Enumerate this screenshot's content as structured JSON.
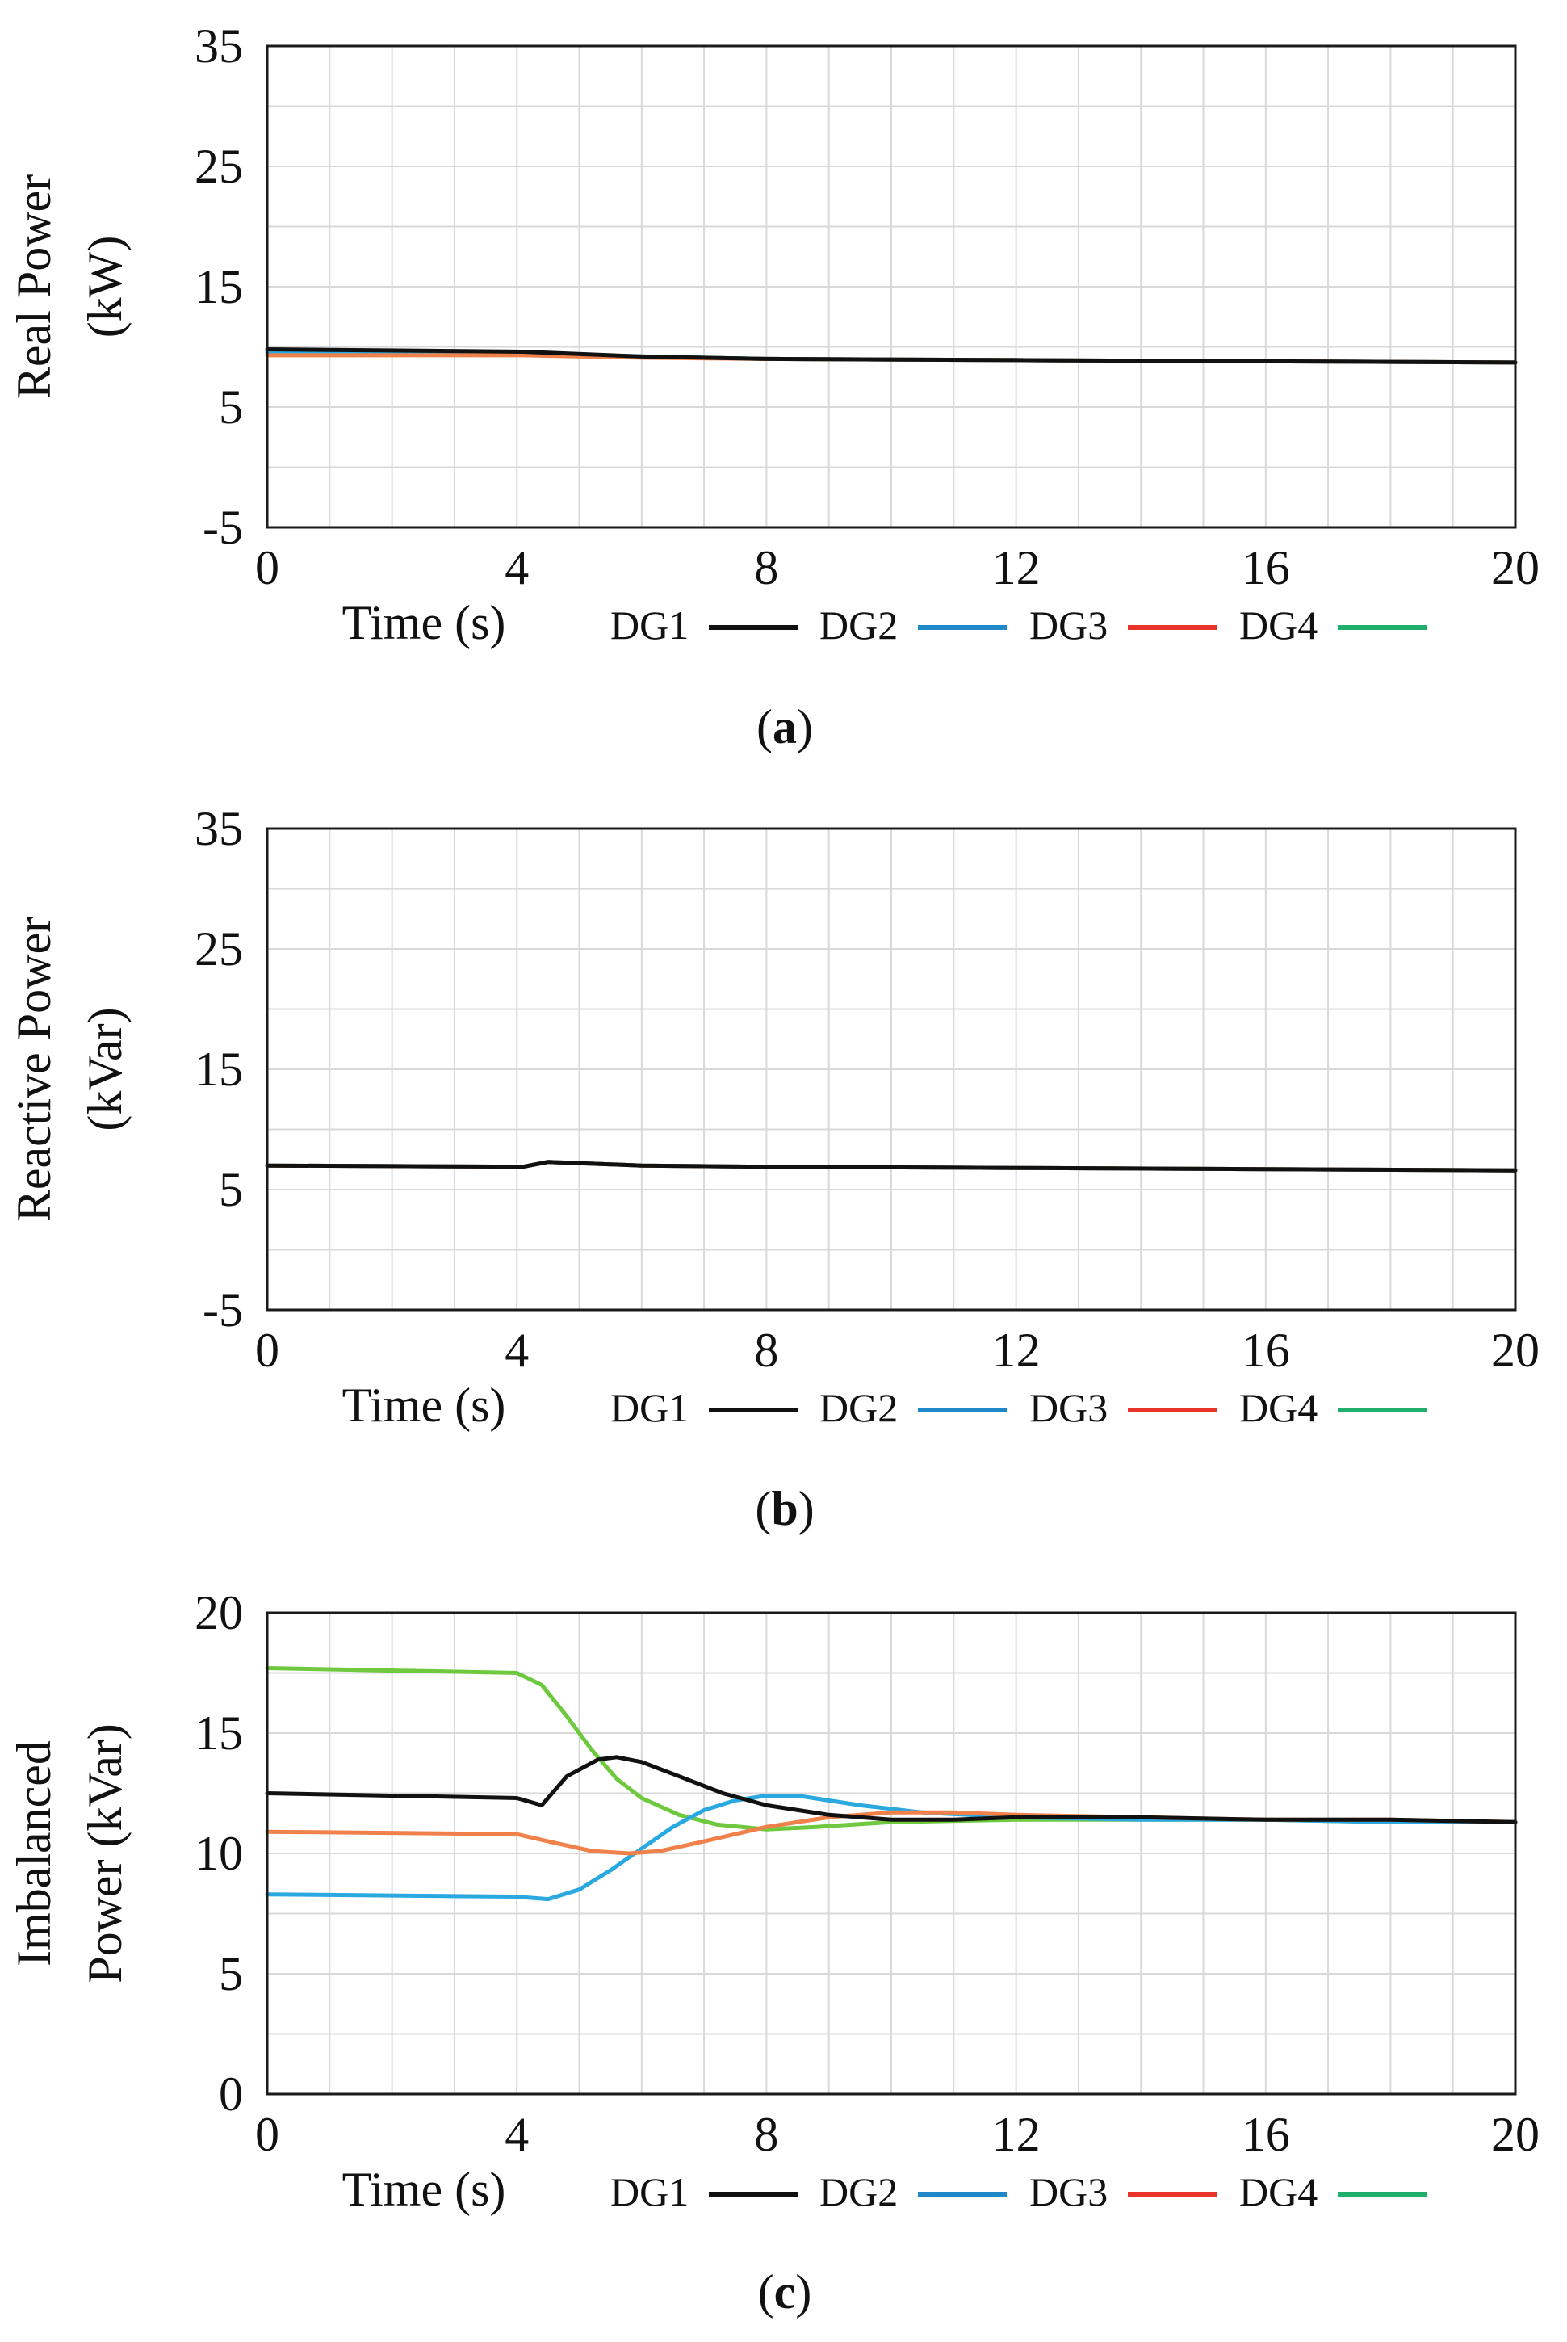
{
  "colors": {
    "DG1": "#111111",
    "DG2": "#2aa8e0",
    "DG3": "#f0814a",
    "DG4": "#6ec93f",
    "legend_DG2": "#1e88c8",
    "legend_DG3": "#e8332a",
    "legend_DG4": "#1fae6c"
  },
  "chart_data": [
    {
      "type": "line",
      "panel_label": "a",
      "xlabel": "Time (s)",
      "ylabel": [
        "Real Power",
        "(kW)"
      ],
      "xlim": [
        0,
        20
      ],
      "ylim": [
        -5,
        35
      ],
      "x_ticks": [
        0,
        4,
        8,
        12,
        16,
        20
      ],
      "y_ticks": [
        -5,
        5,
        15,
        25,
        35
      ],
      "legend": [
        "DG1",
        "DG2",
        "DG3",
        "DG4"
      ],
      "series": [
        {
          "name": "DG1",
          "x": [
            0,
            4.1,
            6,
            8,
            12,
            16,
            20
          ],
          "values": [
            9.8,
            9.6,
            9.2,
            9.0,
            8.9,
            8.8,
            8.7
          ]
        },
        {
          "name": "DG2",
          "x": [
            0,
            4.1,
            6,
            8,
            12,
            16,
            20
          ],
          "values": [
            9.6,
            9.5,
            9.2,
            9.0,
            8.9,
            8.8,
            8.7
          ]
        },
        {
          "name": "DG3",
          "x": [
            0,
            4.1,
            6,
            8,
            12,
            16,
            20
          ],
          "values": [
            9.3,
            9.3,
            9.1,
            9.0,
            8.9,
            8.8,
            8.7
          ]
        },
        {
          "name": "DG4",
          "x": [
            0,
            4.1,
            6,
            8,
            12,
            16,
            20
          ],
          "values": [
            9.5,
            9.4,
            9.2,
            9.0,
            8.9,
            8.8,
            8.7
          ]
        }
      ]
    },
    {
      "type": "line",
      "panel_label": "b",
      "xlabel": "Time (s)",
      "ylabel": [
        "Reactive Power",
        "(kVar)"
      ],
      "xlim": [
        0,
        20
      ],
      "ylim": [
        -5,
        35
      ],
      "x_ticks": [
        0,
        4,
        8,
        12,
        16,
        20
      ],
      "y_ticks": [
        -5,
        5,
        15,
        25,
        35
      ],
      "legend": [
        "DG1",
        "DG2",
        "DG3",
        "DG4"
      ],
      "series": [
        {
          "name": "DG1",
          "x": [
            0,
            4.1,
            4.5,
            6,
            8,
            12,
            16,
            20
          ],
          "values": [
            7.0,
            6.9,
            7.3,
            7.0,
            6.9,
            6.8,
            6.7,
            6.6
          ]
        },
        {
          "name": "DG2",
          "x": [
            0,
            4.1,
            4.5,
            6,
            8,
            12,
            16,
            20
          ],
          "values": [
            7.0,
            6.9,
            7.3,
            7.0,
            6.9,
            6.8,
            6.7,
            6.6
          ]
        },
        {
          "name": "DG3",
          "x": [
            0,
            4.1,
            4.5,
            6,
            8,
            12,
            16,
            20
          ],
          "values": [
            7.0,
            6.9,
            7.3,
            7.0,
            6.9,
            6.8,
            6.7,
            6.6
          ]
        },
        {
          "name": "DG4",
          "x": [
            0,
            4.1,
            4.5,
            6,
            8,
            12,
            16,
            20
          ],
          "values": [
            7.0,
            6.9,
            7.3,
            7.0,
            6.9,
            6.8,
            6.7,
            6.6
          ]
        }
      ]
    },
    {
      "type": "line",
      "panel_label": "c",
      "xlabel": "Time (s)",
      "ylabel": [
        "Imbalanced",
        "Power (kVar)"
      ],
      "xlim": [
        0,
        20
      ],
      "ylim": [
        0,
        20
      ],
      "x_ticks": [
        0,
        4,
        8,
        12,
        16,
        20
      ],
      "y_ticks": [
        0,
        5,
        10,
        15,
        20
      ],
      "legend": [
        "DG1",
        "DG2",
        "DG3",
        "DG4"
      ],
      "series": [
        {
          "name": "DG1",
          "x": [
            0,
            4.0,
            4.4,
            4.8,
            5.3,
            5.6,
            6.0,
            6.6,
            7.3,
            8.0,
            9.0,
            10.0,
            11.0,
            12.0,
            14.0,
            16.0,
            18.0,
            20.0
          ],
          "values": [
            12.5,
            12.3,
            12.0,
            13.2,
            13.9,
            14.0,
            13.8,
            13.2,
            12.5,
            12.0,
            11.6,
            11.4,
            11.4,
            11.5,
            11.5,
            11.4,
            11.4,
            11.3
          ]
        },
        {
          "name": "DG2",
          "x": [
            0,
            4.0,
            4.5,
            5.0,
            5.5,
            6.0,
            6.5,
            7.0,
            7.5,
            8.0,
            8.5,
            9.5,
            10.5,
            12.0,
            14.0,
            16.0,
            18.0,
            20.0
          ],
          "values": [
            8.3,
            8.2,
            8.1,
            8.5,
            9.3,
            10.2,
            11.1,
            11.8,
            12.2,
            12.4,
            12.4,
            12.0,
            11.7,
            11.5,
            11.4,
            11.4,
            11.3,
            11.3
          ]
        },
        {
          "name": "DG3",
          "x": [
            0,
            4.0,
            4.5,
            5.2,
            5.8,
            6.3,
            7.0,
            8.0,
            9.0,
            10.0,
            11.0,
            12.0,
            14.0,
            16.0,
            18.0,
            20.0
          ],
          "values": [
            10.9,
            10.8,
            10.5,
            10.1,
            10.0,
            10.1,
            10.5,
            11.1,
            11.5,
            11.7,
            11.7,
            11.6,
            11.5,
            11.4,
            11.4,
            11.3
          ]
        },
        {
          "name": "DG4",
          "x": [
            0,
            4.0,
            4.4,
            4.8,
            5.2,
            5.6,
            6.0,
            6.6,
            7.2,
            8.0,
            8.8,
            10.0,
            12.0,
            14.0,
            16.0,
            18.0,
            20.0
          ],
          "values": [
            17.7,
            17.5,
            17.0,
            15.7,
            14.3,
            13.1,
            12.3,
            11.6,
            11.2,
            11.0,
            11.1,
            11.3,
            11.4,
            11.4,
            11.4,
            11.3,
            11.3
          ]
        }
      ]
    }
  ]
}
